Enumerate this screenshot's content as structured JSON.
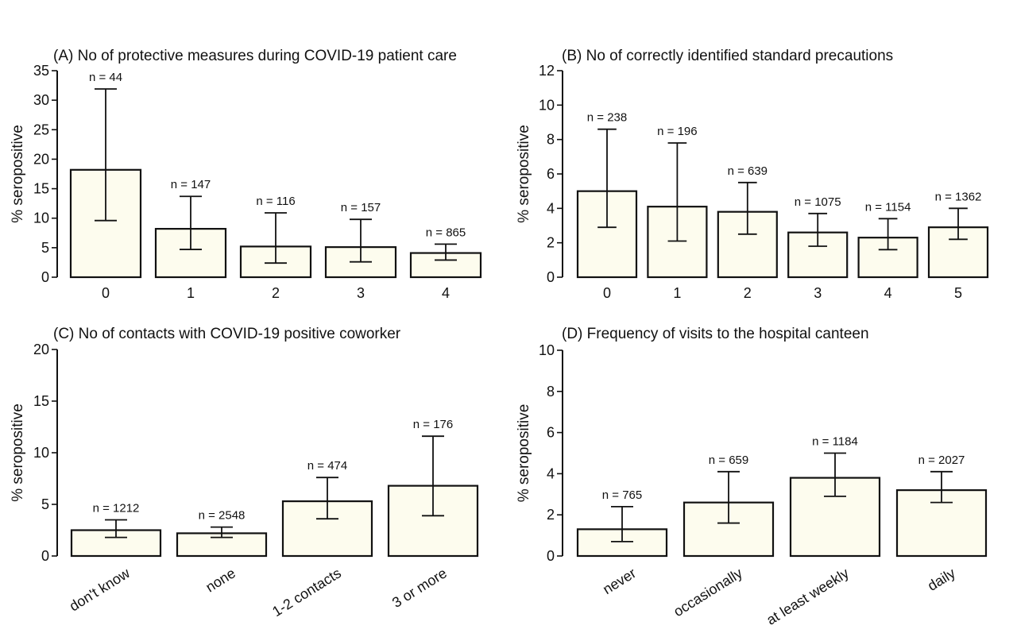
{
  "colors": {
    "bar_fill": "#fdfcee",
    "bar_stroke": "#111111",
    "axis": "#111111",
    "text": "#111111",
    "background": "#ffffff"
  },
  "chart_data": [
    {
      "type": "bar",
      "id": "A",
      "title": "(A) No of protective measures during COVID-19 patient care",
      "xlabel": "",
      "ylabel": "% seropositive",
      "ylim": [
        0,
        35
      ],
      "yticks": [
        0,
        5,
        10,
        15,
        20,
        25,
        30,
        35
      ],
      "categories": [
        "0",
        "1",
        "2",
        "3",
        "4"
      ],
      "values": [
        18.2,
        8.2,
        5.2,
        5.1,
        4.1
      ],
      "err_low": [
        9.6,
        4.7,
        2.4,
        2.6,
        2.9
      ],
      "err_high": [
        31.9,
        13.7,
        10.9,
        9.8,
        5.6
      ],
      "n_labels": [
        "n = 44",
        "n = 147",
        "n = 116",
        "n = 157",
        "n = 865"
      ],
      "grid": false
    },
    {
      "type": "bar",
      "id": "B",
      "title": "(B) No of correctly identified standard precautions",
      "xlabel": "",
      "ylabel": "% seropositive",
      "ylim": [
        0,
        12
      ],
      "yticks": [
        0,
        2,
        4,
        6,
        8,
        10,
        12
      ],
      "categories": [
        "0",
        "1",
        "2",
        "3",
        "4",
        "5"
      ],
      "values": [
        5.0,
        4.1,
        3.8,
        2.6,
        2.3,
        2.9
      ],
      "err_low": [
        2.9,
        2.1,
        2.5,
        1.8,
        1.6,
        2.2
      ],
      "err_high": [
        8.6,
        7.8,
        5.5,
        3.7,
        3.4,
        4.0
      ],
      "n_labels": [
        "n = 238",
        "n = 196",
        "n = 639",
        "n = 1075",
        "n = 1154",
        "n = 1362"
      ],
      "grid": false
    },
    {
      "type": "bar",
      "id": "C",
      "title": "(C) No of contacts with COVID-19 positive coworker",
      "xlabel": "",
      "ylabel": "% seropositive",
      "ylim": [
        0,
        20
      ],
      "yticks": [
        0,
        5,
        10,
        15,
        20
      ],
      "categories": [
        "don't know",
        "none",
        "1-2 contacts",
        "3 or more"
      ],
      "values": [
        2.5,
        2.2,
        5.3,
        6.8
      ],
      "err_low": [
        1.8,
        1.8,
        3.6,
        3.9
      ],
      "err_high": [
        3.5,
        2.8,
        7.6,
        11.6
      ],
      "n_labels": [
        "n = 1212",
        "n = 2548",
        "n = 474",
        "n = 176"
      ],
      "grid": false
    },
    {
      "type": "bar",
      "id": "D",
      "title": "(D) Frequency of visits to the hospital canteen",
      "xlabel": "",
      "ylabel": "% seropositive",
      "ylim": [
        0,
        10
      ],
      "yticks": [
        0,
        2,
        4,
        6,
        8,
        10
      ],
      "categories": [
        "never",
        "occasionally",
        "at least weekly",
        "daily"
      ],
      "values": [
        1.3,
        2.6,
        3.8,
        3.2
      ],
      "err_low": [
        0.7,
        1.6,
        2.9,
        2.6
      ],
      "err_high": [
        2.4,
        4.1,
        5.0,
        4.1
      ],
      "n_labels": [
        "n = 765",
        "n = 659",
        "n = 1184",
        "n = 2027"
      ],
      "grid": false
    }
  ]
}
